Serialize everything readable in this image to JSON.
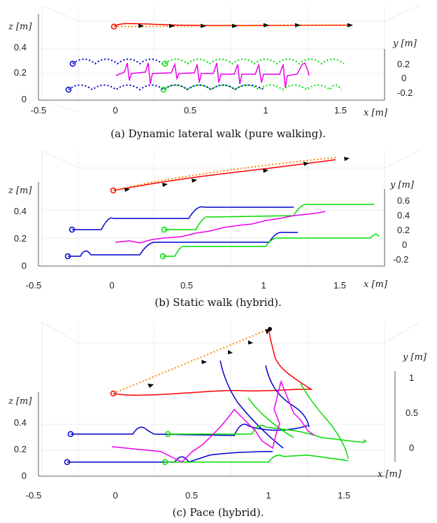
{
  "chart_data": [
    {
      "type": "line",
      "panel": "a",
      "caption": "(a) Dynamic lateral walk (pure walking).",
      "xlabel": "x [m]",
      "ylabel": "y [m]",
      "zlabel": "z [m]",
      "x_ticks": [
        "-0.5",
        "0",
        "0.5",
        "1",
        "1.5"
      ],
      "y_ticks": [
        "0.2",
        "0",
        "-0.2"
      ],
      "z_ticks": [
        "0.4",
        "0.2",
        "0"
      ],
      "xlim": [
        -0.5,
        1.7
      ],
      "series": [
        {
          "name": "",
          "color": "#ff0000",
          "style": "solid",
          "points": [
            [
              0,
              0.55
            ],
            [
              0.3,
              0.6
            ],
            [
              0.9,
              0.6
            ],
            [
              1.55,
              0.6
            ]
          ]
        },
        {
          "name": "",
          "color": "#ff8800",
          "style": "dotted",
          "points": [
            [
              0,
              0.55
            ],
            [
              0.8,
              0.58
            ],
            [
              1.55,
              0.6
            ]
          ]
        },
        {
          "name": "",
          "color": "#0000cc",
          "style": "dotted",
          "points": [
            [
              -0.28,
              0.28
            ],
            [
              0.32,
              0.28
            ]
          ]
        },
        {
          "name": "",
          "color": "#00cc00",
          "style": "dotted",
          "points": [
            [
              0.32,
              0.28
            ],
            [
              1.5,
              0.28
            ]
          ]
        },
        {
          "name": "",
          "color": "#ee00ee",
          "style": "solid",
          "points": [
            [
              0.05,
              0.17
            ],
            [
              1.3,
              0.17
            ]
          ]
        }
      ]
    },
    {
      "type": "line",
      "panel": "b",
      "caption": "(b) Static walk (hybrid).",
      "xlabel": "x [m]",
      "ylabel": "y [m]",
      "zlabel": "z [m]",
      "x_ticks": [
        "-0.5",
        "0",
        "0.5",
        "1",
        "1.5"
      ],
      "y_ticks": [
        "0.6",
        "0.4",
        "0.2",
        "0",
        "-0.2"
      ],
      "z_ticks": [
        "0.4",
        "0.2",
        "0"
      ],
      "xlim": [
        -0.5,
        1.7
      ]
    },
    {
      "type": "line",
      "panel": "c",
      "caption": "(c) Pace (hybrid).",
      "xlabel": "x [m]",
      "ylabel": "y [m]",
      "zlabel": "z [m]",
      "x_ticks": [
        "-0.5",
        "0",
        "0.5",
        "1",
        "1.5"
      ],
      "y_ticks": [
        "1",
        "0.5",
        "0"
      ],
      "z_ticks": [
        "0.4",
        "0.2",
        "0"
      ],
      "xlim": [
        -0.5,
        1.7
      ]
    }
  ]
}
